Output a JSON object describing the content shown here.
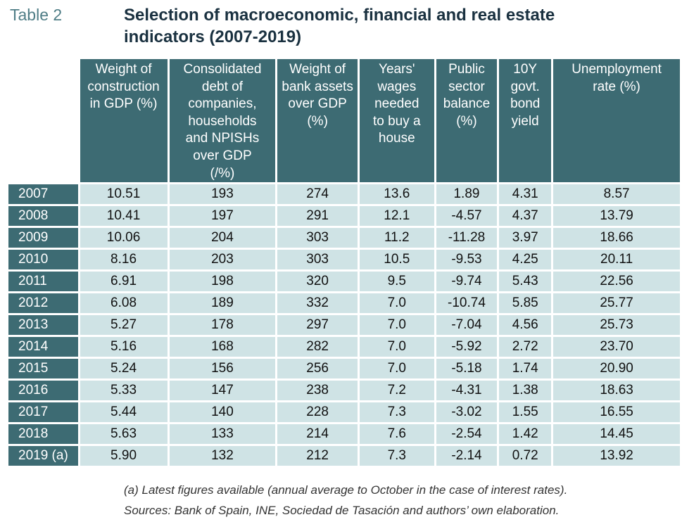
{
  "table_label": "Table 2",
  "title_line1": "Selection of macroeconomic, financial and real estate",
  "title_line2": "indicators (2007-2019)",
  "headers": [
    "Weight of construction in GDP (%)",
    "Consolidated debt of companies, households and NPISHs over GDP (/%)",
    "Weight of bank assets over GDP (%)",
    "Years' wages needed to buy a house",
    "Public sector balance (%)",
    "10Y govt. bond yield",
    "Unemployment rate (%)"
  ],
  "rows": [
    {
      "year": "2007",
      "values": [
        "10.51",
        "193",
        "274",
        "13.6",
        "1.89",
        "4.31",
        "8.57"
      ]
    },
    {
      "year": "2008",
      "values": [
        "10.41",
        "197",
        "291",
        "12.1",
        "-4.57",
        "4.37",
        "13.79"
      ]
    },
    {
      "year": "2009",
      "values": [
        "10.06",
        "204",
        "303",
        "11.2",
        "-11.28",
        "3.97",
        "18.66"
      ]
    },
    {
      "year": "2010",
      "values": [
        "8.16",
        "203",
        "303",
        "10.5",
        "-9.53",
        "4.25",
        "20.11"
      ]
    },
    {
      "year": "2011",
      "values": [
        "6.91",
        "198",
        "320",
        "9.5",
        "-9.74",
        "5.43",
        "22.56"
      ]
    },
    {
      "year": "2012",
      "values": [
        "6.08",
        "189",
        "332",
        "7.0",
        "-10.74",
        "5.85",
        "25.77"
      ]
    },
    {
      "year": "2013",
      "values": [
        "5.27",
        "178",
        "297",
        "7.0",
        "-7.04",
        "4.56",
        "25.73"
      ]
    },
    {
      "year": "2014",
      "values": [
        "5.16",
        "168",
        "282",
        "7.0",
        "-5.92",
        "2.72",
        "23.70"
      ]
    },
    {
      "year": "2015",
      "values": [
        "5.24",
        "156",
        "256",
        "7.0",
        "-5.18",
        "1.74",
        "20.90"
      ]
    },
    {
      "year": "2016",
      "values": [
        "5.33",
        "147",
        "238",
        "7.2",
        "-4.31",
        "1.38",
        "18.63"
      ]
    },
    {
      "year": "2017",
      "values": [
        "5.44",
        "140",
        "228",
        "7.3",
        "-3.02",
        "1.55",
        "16.55"
      ]
    },
    {
      "year": "2018",
      "values": [
        "5.63",
        "133",
        "214",
        "7.6",
        "-2.54",
        "1.42",
        "14.45"
      ]
    },
    {
      "year": "2019 (a)",
      "values": [
        "5.90",
        "132",
        "212",
        "7.3",
        "-2.14",
        "0.72",
        "13.92"
      ]
    }
  ],
  "note": "(a) Latest figures available (annual average to October in the case of interest rates).",
  "sources": "Sources: Bank of Spain, INE, Sociedad de Tasación and authors’ own elaboration.",
  "colors": {
    "header_bg": "#3d6b73",
    "cell_bg": "#cfe3e5",
    "label_color": "#4f7d86",
    "title_color": "#1a3140"
  }
}
